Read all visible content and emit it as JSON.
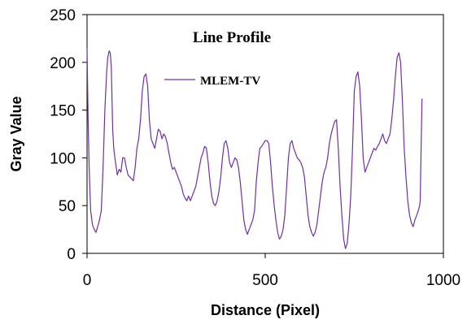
{
  "chart_data": {
    "type": "line",
    "title": "Line Profile",
    "xlabel": "Distance (Pixel)",
    "ylabel": "Gray Value",
    "xlim": [
      0,
      1000
    ],
    "ylim": [
      0,
      250
    ],
    "xticks": [
      0,
      500,
      1000
    ],
    "yticks": [
      0,
      50,
      100,
      150,
      200,
      250
    ],
    "grid": false,
    "legend_position": "top-center",
    "series": [
      {
        "name": "MLEM-TV",
        "color": "#7030a0",
        "points": [
          [
            0,
            215
          ],
          [
            3,
            140
          ],
          [
            6,
            90
          ],
          [
            10,
            45
          ],
          [
            15,
            30
          ],
          [
            20,
            25
          ],
          [
            25,
            22
          ],
          [
            30,
            28
          ],
          [
            35,
            35
          ],
          [
            40,
            45
          ],
          [
            45,
            90
          ],
          [
            50,
            150
          ],
          [
            55,
            190
          ],
          [
            58,
            205
          ],
          [
            62,
            212
          ],
          [
            65,
            210
          ],
          [
            68,
            195
          ],
          [
            72,
            130
          ],
          [
            75,
            110
          ],
          [
            78,
            100
          ],
          [
            82,
            90
          ],
          [
            85,
            82
          ],
          [
            90,
            88
          ],
          [
            95,
            85
          ],
          [
            100,
            100
          ],
          [
            105,
            100
          ],
          [
            110,
            90
          ],
          [
            115,
            82
          ],
          [
            120,
            80
          ],
          [
            125,
            78
          ],
          [
            130,
            76
          ],
          [
            135,
            90
          ],
          [
            140,
            110
          ],
          [
            145,
            120
          ],
          [
            150,
            140
          ],
          [
            155,
            170
          ],
          [
            160,
            185
          ],
          [
            165,
            188
          ],
          [
            170,
            175
          ],
          [
            175,
            140
          ],
          [
            180,
            120
          ],
          [
            185,
            115
          ],
          [
            190,
            110
          ],
          [
            195,
            120
          ],
          [
            200,
            130
          ],
          [
            205,
            128
          ],
          [
            210,
            120
          ],
          [
            215,
            125
          ],
          [
            220,
            122
          ],
          [
            225,
            115
          ],
          [
            230,
            105
          ],
          [
            235,
            95
          ],
          [
            240,
            88
          ],
          [
            245,
            90
          ],
          [
            250,
            85
          ],
          [
            255,
            80
          ],
          [
            260,
            75
          ],
          [
            265,
            70
          ],
          [
            270,
            62
          ],
          [
            275,
            58
          ],
          [
            280,
            55
          ],
          [
            285,
            60
          ],
          [
            290,
            55
          ],
          [
            295,
            60
          ],
          [
            300,
            65
          ],
          [
            305,
            70
          ],
          [
            310,
            80
          ],
          [
            315,
            90
          ],
          [
            320,
            100
          ],
          [
            325,
            105
          ],
          [
            330,
            112
          ],
          [
            335,
            110
          ],
          [
            340,
            95
          ],
          [
            345,
            75
          ],
          [
            350,
            60
          ],
          [
            355,
            52
          ],
          [
            360,
            50
          ],
          [
            365,
            55
          ],
          [
            370,
            65
          ],
          [
            375,
            80
          ],
          [
            380,
            100
          ],
          [
            385,
            115
          ],
          [
            390,
            118
          ],
          [
            395,
            110
          ],
          [
            400,
            95
          ],
          [
            405,
            90
          ],
          [
            410,
            95
          ],
          [
            415,
            100
          ],
          [
            420,
            98
          ],
          [
            425,
            90
          ],
          [
            430,
            75
          ],
          [
            435,
            55
          ],
          [
            440,
            35
          ],
          [
            445,
            25
          ],
          [
            450,
            20
          ],
          [
            455,
            25
          ],
          [
            460,
            30
          ],
          [
            465,
            35
          ],
          [
            470,
            45
          ],
          [
            475,
            75
          ],
          [
            480,
            95
          ],
          [
            485,
            110
          ],
          [
            490,
            112
          ],
          [
            495,
            115
          ],
          [
            500,
            118
          ],
          [
            505,
            118
          ],
          [
            510,
            115
          ],
          [
            515,
            95
          ],
          [
            520,
            70
          ],
          [
            525,
            50
          ],
          [
            530,
            35
          ],
          [
            535,
            22
          ],
          [
            540,
            15
          ],
          [
            545,
            18
          ],
          [
            550,
            25
          ],
          [
            555,
            40
          ],
          [
            560,
            70
          ],
          [
            565,
            100
          ],
          [
            570,
            115
          ],
          [
            575,
            118
          ],
          [
            580,
            110
          ],
          [
            585,
            105
          ],
          [
            590,
            100
          ],
          [
            595,
            98
          ],
          [
            600,
            95
          ],
          [
            605,
            90
          ],
          [
            610,
            80
          ],
          [
            615,
            60
          ],
          [
            620,
            40
          ],
          [
            625,
            28
          ],
          [
            630,
            22
          ],
          [
            635,
            18
          ],
          [
            640,
            22
          ],
          [
            645,
            30
          ],
          [
            650,
            45
          ],
          [
            655,
            60
          ],
          [
            660,
            75
          ],
          [
            665,
            85
          ],
          [
            670,
            90
          ],
          [
            675,
            100
          ],
          [
            680,
            115
          ],
          [
            685,
            125
          ],
          [
            690,
            132
          ],
          [
            695,
            138
          ],
          [
            700,
            140
          ],
          [
            705,
            110
          ],
          [
            710,
            70
          ],
          [
            715,
            40
          ],
          [
            720,
            15
          ],
          [
            725,
            5
          ],
          [
            730,
            10
          ],
          [
            735,
            30
          ],
          [
            740,
            60
          ],
          [
            745,
            110
          ],
          [
            750,
            170
          ],
          [
            755,
            185
          ],
          [
            760,
            190
          ],
          [
            765,
            175
          ],
          [
            770,
            140
          ],
          [
            775,
            100
          ],
          [
            780,
            85
          ],
          [
            785,
            90
          ],
          [
            790,
            95
          ],
          [
            795,
            100
          ],
          [
            800,
            105
          ],
          [
            805,
            110
          ],
          [
            810,
            108
          ],
          [
            815,
            112
          ],
          [
            820,
            115
          ],
          [
            825,
            120
          ],
          [
            830,
            125
          ],
          [
            835,
            118
          ],
          [
            840,
            115
          ],
          [
            845,
            120
          ],
          [
            850,
            125
          ],
          [
            855,
            140
          ],
          [
            860,
            160
          ],
          [
            865,
            185
          ],
          [
            870,
            205
          ],
          [
            875,
            210
          ],
          [
            880,
            200
          ],
          [
            885,
            160
          ],
          [
            890,
            110
          ],
          [
            895,
            80
          ],
          [
            900,
            55
          ],
          [
            905,
            40
          ],
          [
            910,
            32
          ],
          [
            915,
            28
          ],
          [
            920,
            35
          ],
          [
            925,
            40
          ],
          [
            930,
            45
          ],
          [
            933,
            50
          ],
          [
            935,
            55
          ],
          [
            937,
            100
          ],
          [
            940,
            162
          ]
        ]
      }
    ]
  }
}
